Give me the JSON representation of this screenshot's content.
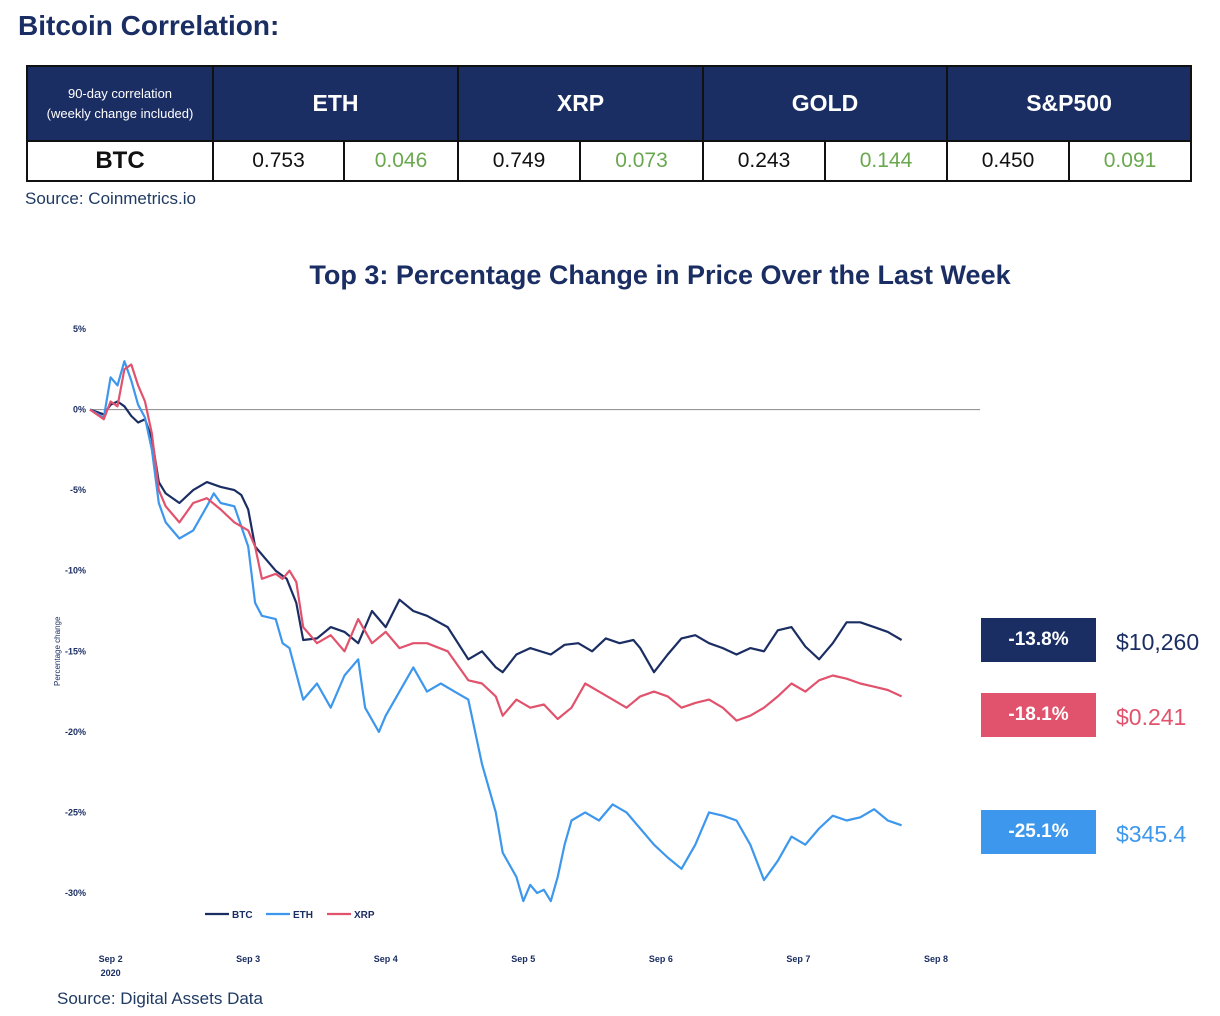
{
  "correlation": {
    "title": "Bitcoin Correlation:",
    "header_label_line1": "90-day correlation",
    "header_label_line2": "(weekly change included)",
    "columns": [
      "ETH",
      "XRP",
      "GOLD",
      "S&P500"
    ],
    "row_label": "BTC",
    "values": [
      {
        "corr": "0.753",
        "change": "0.046"
      },
      {
        "corr": "0.749",
        "change": "0.073"
      },
      {
        "corr": "0.243",
        "change": "0.144"
      },
      {
        "corr": "0.450",
        "change": "0.091"
      }
    ],
    "source": "Source: Coinmetrics.io"
  },
  "chart_source": "Source: Digital Assets Data",
  "callouts": {
    "btc": {
      "pct": "-13.8%",
      "price": "$10,260"
    },
    "xrp": {
      "pct": "-18.1%",
      "price": "$0.241"
    },
    "eth": {
      "pct": "-25.1%",
      "price": "$345.4"
    }
  },
  "colors": {
    "btc": "#1b2e63",
    "eth": "#3d97ec",
    "xrp": "#e1526d",
    "green": "#6aa84f"
  },
  "chart_data": {
    "type": "line",
    "title": "Top 3: Percentage Change in Price Over the Last Week",
    "ylabel": "Percentage change",
    "xlabel": "",
    "ylim": [
      -30,
      5
    ],
    "yticks": [
      5,
      0,
      -5,
      -10,
      -15,
      -20,
      -25,
      -30
    ],
    "ytick_labels": [
      "5%",
      "0%",
      "-5%",
      "-10%",
      "-15%",
      "-20%",
      "-25%",
      "-30%"
    ],
    "xlim": [
      1.85,
      8.32
    ],
    "xticks": [
      {
        "x": 2,
        "label": "Sep 2",
        "sublabel": "2020"
      },
      {
        "x": 3,
        "label": "Sep 3"
      },
      {
        "x": 4,
        "label": "Sep 4"
      },
      {
        "x": 5,
        "label": "Sep 5"
      },
      {
        "x": 6,
        "label": "Sep 6"
      },
      {
        "x": 7,
        "label": "Sep 7"
      },
      {
        "x": 8,
        "label": "Sep 8"
      }
    ],
    "legend": [
      "BTC",
      "ETH",
      "XRP"
    ],
    "legend_position": "bottom-left",
    "reference_line": 0,
    "series": [
      {
        "name": "BTC",
        "color": "#1b2e63",
        "points": [
          [
            1.85,
            0
          ],
          [
            1.95,
            -0.3
          ],
          [
            2.0,
            0.3
          ],
          [
            2.05,
            0.5
          ],
          [
            2.1,
            0.2
          ],
          [
            2.15,
            -0.4
          ],
          [
            2.2,
            -0.8
          ],
          [
            2.25,
            -0.6
          ],
          [
            2.3,
            -1.8
          ],
          [
            2.35,
            -4.5
          ],
          [
            2.4,
            -5.2
          ],
          [
            2.5,
            -5.8
          ],
          [
            2.6,
            -5
          ],
          [
            2.7,
            -4.5
          ],
          [
            2.8,
            -4.8
          ],
          [
            2.9,
            -5
          ],
          [
            2.95,
            -5.3
          ],
          [
            3.0,
            -6.2
          ],
          [
            3.05,
            -8.5
          ],
          [
            3.1,
            -9
          ],
          [
            3.2,
            -10
          ],
          [
            3.28,
            -10.5
          ],
          [
            3.35,
            -12
          ],
          [
            3.4,
            -14.3
          ],
          [
            3.5,
            -14.2
          ],
          [
            3.6,
            -13.5
          ],
          [
            3.7,
            -13.8
          ],
          [
            3.8,
            -14.5
          ],
          [
            3.9,
            -12.5
          ],
          [
            4.0,
            -13.5
          ],
          [
            4.1,
            -11.8
          ],
          [
            4.2,
            -12.5
          ],
          [
            4.3,
            -12.8
          ],
          [
            4.45,
            -13.5
          ],
          [
            4.6,
            -15.5
          ],
          [
            4.7,
            -15
          ],
          [
            4.8,
            -16
          ],
          [
            4.85,
            -16.3
          ],
          [
            4.95,
            -15.2
          ],
          [
            5.05,
            -14.8
          ],
          [
            5.2,
            -15.2
          ],
          [
            5.3,
            -14.6
          ],
          [
            5.4,
            -14.5
          ],
          [
            5.5,
            -15
          ],
          [
            5.6,
            -14.2
          ],
          [
            5.7,
            -14.5
          ],
          [
            5.8,
            -14.3
          ],
          [
            5.85,
            -14.8
          ],
          [
            5.95,
            -16.3
          ],
          [
            6.05,
            -15.2
          ],
          [
            6.15,
            -14.2
          ],
          [
            6.25,
            -14
          ],
          [
            6.35,
            -14.5
          ],
          [
            6.45,
            -14.8
          ],
          [
            6.55,
            -15.2
          ],
          [
            6.65,
            -14.8
          ],
          [
            6.75,
            -15
          ],
          [
            6.85,
            -13.7
          ],
          [
            6.95,
            -13.5
          ],
          [
            7.05,
            -14.7
          ],
          [
            7.15,
            -15.5
          ],
          [
            7.25,
            -14.5
          ],
          [
            7.35,
            -13.2
          ],
          [
            7.45,
            -13.2
          ],
          [
            7.55,
            -13.5
          ],
          [
            7.65,
            -13.8
          ],
          [
            7.75,
            -14.3
          ]
        ]
      },
      {
        "name": "ETH",
        "color": "#3d97ec",
        "points": [
          [
            1.85,
            0
          ],
          [
            1.95,
            -0.5
          ],
          [
            2.0,
            2
          ],
          [
            2.05,
            1.5
          ],
          [
            2.1,
            3
          ],
          [
            2.15,
            1.8
          ],
          [
            2.2,
            0.3
          ],
          [
            2.25,
            -0.5
          ],
          [
            2.3,
            -2.5
          ],
          [
            2.35,
            -5.8
          ],
          [
            2.4,
            -7
          ],
          [
            2.5,
            -8
          ],
          [
            2.6,
            -7.5
          ],
          [
            2.7,
            -6
          ],
          [
            2.75,
            -5.2
          ],
          [
            2.8,
            -5.8
          ],
          [
            2.9,
            -6
          ],
          [
            3.0,
            -8.5
          ],
          [
            3.05,
            -12
          ],
          [
            3.1,
            -12.8
          ],
          [
            3.2,
            -13
          ],
          [
            3.25,
            -14.5
          ],
          [
            3.3,
            -14.8
          ],
          [
            3.4,
            -18
          ],
          [
            3.5,
            -17
          ],
          [
            3.6,
            -18.5
          ],
          [
            3.7,
            -16.5
          ],
          [
            3.8,
            -15.5
          ],
          [
            3.85,
            -18.5
          ],
          [
            3.95,
            -20
          ],
          [
            4.0,
            -19
          ],
          [
            4.1,
            -17.5
          ],
          [
            4.2,
            -16
          ],
          [
            4.3,
            -17.5
          ],
          [
            4.4,
            -17
          ],
          [
            4.5,
            -17.5
          ],
          [
            4.6,
            -18
          ],
          [
            4.7,
            -22
          ],
          [
            4.8,
            -25
          ],
          [
            4.85,
            -27.5
          ],
          [
            4.95,
            -29
          ],
          [
            5.0,
            -30.5
          ],
          [
            5.05,
            -29.5
          ],
          [
            5.1,
            -30
          ],
          [
            5.15,
            -29.8
          ],
          [
            5.2,
            -30.5
          ],
          [
            5.25,
            -29
          ],
          [
            5.3,
            -27
          ],
          [
            5.35,
            -25.5
          ],
          [
            5.45,
            -25
          ],
          [
            5.55,
            -25.5
          ],
          [
            5.65,
            -24.5
          ],
          [
            5.75,
            -25
          ],
          [
            5.85,
            -26
          ],
          [
            5.95,
            -27
          ],
          [
            6.05,
            -27.8
          ],
          [
            6.15,
            -28.5
          ],
          [
            6.25,
            -27
          ],
          [
            6.35,
            -25
          ],
          [
            6.45,
            -25.2
          ],
          [
            6.55,
            -25.5
          ],
          [
            6.65,
            -27
          ],
          [
            6.75,
            -29.2
          ],
          [
            6.85,
            -28
          ],
          [
            6.95,
            -26.5
          ],
          [
            7.05,
            -27
          ],
          [
            7.15,
            -26
          ],
          [
            7.25,
            -25.2
          ],
          [
            7.35,
            -25.5
          ],
          [
            7.45,
            -25.3
          ],
          [
            7.55,
            -24.8
          ],
          [
            7.65,
            -25.5
          ],
          [
            7.75,
            -25.8
          ]
        ]
      },
      {
        "name": "XRP",
        "color": "#e1526d",
        "points": [
          [
            1.85,
            0
          ],
          [
            1.95,
            -0.6
          ],
          [
            2.0,
            0.5
          ],
          [
            2.05,
            0.2
          ],
          [
            2.1,
            2.5
          ],
          [
            2.15,
            2.8
          ],
          [
            2.2,
            1.5
          ],
          [
            2.25,
            0.5
          ],
          [
            2.3,
            -1.5
          ],
          [
            2.35,
            -5
          ],
          [
            2.4,
            -6
          ],
          [
            2.5,
            -7
          ],
          [
            2.6,
            -5.8
          ],
          [
            2.7,
            -5.5
          ],
          [
            2.8,
            -6.2
          ],
          [
            2.9,
            -7
          ],
          [
            3.0,
            -7.5
          ],
          [
            3.05,
            -8.5
          ],
          [
            3.1,
            -10.5
          ],
          [
            3.2,
            -10.2
          ],
          [
            3.25,
            -10.5
          ],
          [
            3.3,
            -10
          ],
          [
            3.35,
            -10.7
          ],
          [
            3.4,
            -13.5
          ],
          [
            3.5,
            -14.5
          ],
          [
            3.6,
            -14
          ],
          [
            3.7,
            -15
          ],
          [
            3.8,
            -13
          ],
          [
            3.9,
            -14.5
          ],
          [
            4.0,
            -13.8
          ],
          [
            4.1,
            -14.8
          ],
          [
            4.2,
            -14.5
          ],
          [
            4.3,
            -14.5
          ],
          [
            4.45,
            -15
          ],
          [
            4.6,
            -16.8
          ],
          [
            4.7,
            -17
          ],
          [
            4.8,
            -17.8
          ],
          [
            4.85,
            -19
          ],
          [
            4.95,
            -18
          ],
          [
            5.05,
            -18.5
          ],
          [
            5.15,
            -18.3
          ],
          [
            5.25,
            -19.2
          ],
          [
            5.35,
            -18.5
          ],
          [
            5.45,
            -17
          ],
          [
            5.55,
            -17.5
          ],
          [
            5.65,
            -18
          ],
          [
            5.75,
            -18.5
          ],
          [
            5.85,
            -17.8
          ],
          [
            5.95,
            -17.5
          ],
          [
            6.05,
            -17.8
          ],
          [
            6.15,
            -18.5
          ],
          [
            6.25,
            -18.2
          ],
          [
            6.35,
            -18
          ],
          [
            6.45,
            -18.5
          ],
          [
            6.55,
            -19.3
          ],
          [
            6.65,
            -19
          ],
          [
            6.75,
            -18.5
          ],
          [
            6.85,
            -17.8
          ],
          [
            6.95,
            -17
          ],
          [
            7.05,
            -17.5
          ],
          [
            7.15,
            -16.8
          ],
          [
            7.25,
            -16.5
          ],
          [
            7.35,
            -16.7
          ],
          [
            7.45,
            -17
          ],
          [
            7.55,
            -17.2
          ],
          [
            7.65,
            -17.4
          ],
          [
            7.75,
            -17.8
          ]
        ]
      }
    ]
  }
}
